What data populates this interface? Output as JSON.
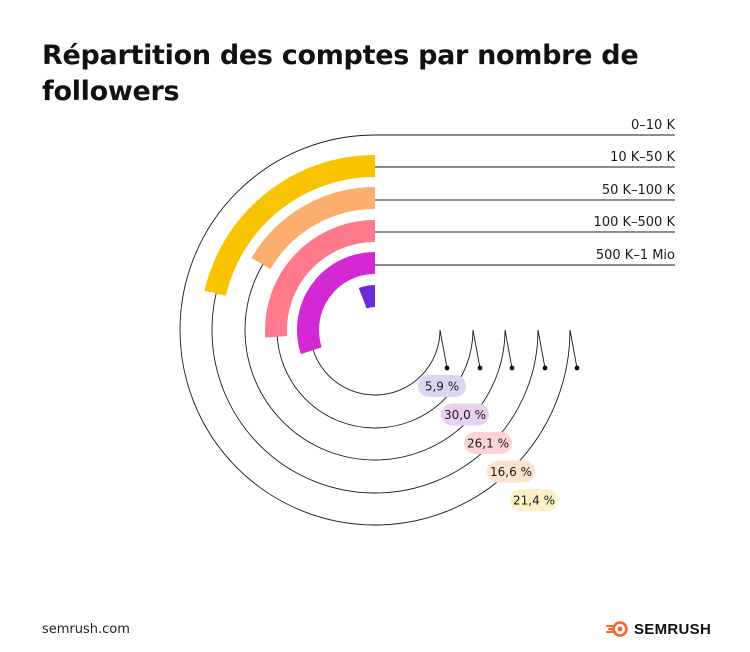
{
  "title": "Répartition des comptes par nombre de followers",
  "footer": {
    "url": "semrush.com",
    "brand": "SEMRUSH"
  },
  "chart_data": {
    "type": "radial-bar",
    "max_percent": 100,
    "series": [
      {
        "category": "0–10 K",
        "value": 21.4,
        "label": "21,4 %",
        "color": "#F8C400",
        "badge": "#FCF0C4"
      },
      {
        "category": "10 K–50 K",
        "value": 16.6,
        "label": "16,6 %",
        "color": "#FBAE6E",
        "badge": "#FDE3CC"
      },
      {
        "category": "50 K–100 K",
        "value": 26.1,
        "label": "26,1 %",
        "color": "#FF7B8C",
        "badge": "#FDD3D7"
      },
      {
        "category": "100 K–500 K",
        "value": 30.0,
        "label": "30,0 %",
        "color": "#D428D4",
        "badge": "#E9CFF0"
      },
      {
        "category": "500 K–1 Mio",
        "value": 5.9,
        "label": "5,9 %",
        "color": "#6B2BD9",
        "badge": "#DCD4F4"
      }
    ]
  }
}
